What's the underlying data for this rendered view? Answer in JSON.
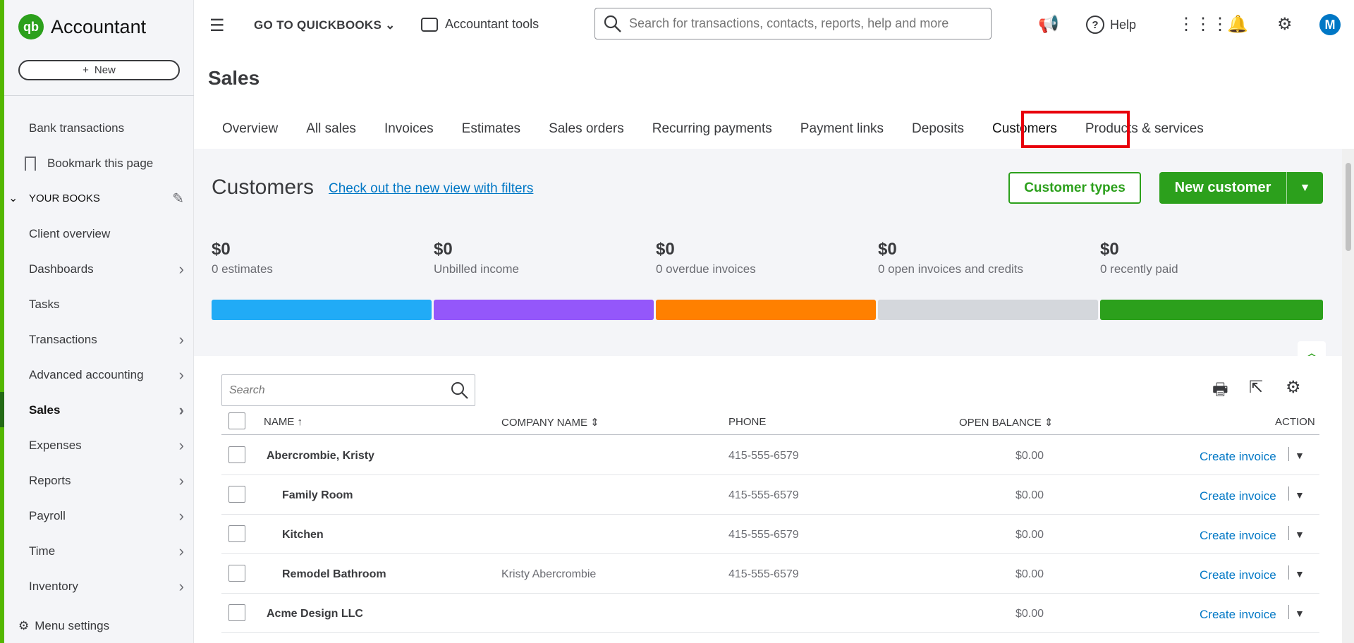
{
  "sidebar": {
    "logo_text": "Accountant",
    "new_label": "New",
    "items": [
      {
        "label": "Bank transactions"
      },
      {
        "label": "Bookmark this page"
      },
      {
        "label": "YOUR BOOKS"
      },
      {
        "label": "Client overview"
      },
      {
        "label": "Dashboards"
      },
      {
        "label": "Tasks"
      },
      {
        "label": "Transactions"
      },
      {
        "label": "Advanced accounting"
      },
      {
        "label": "Sales"
      },
      {
        "label": "Expenses"
      },
      {
        "label": "Reports"
      },
      {
        "label": "Payroll"
      },
      {
        "label": "Time"
      },
      {
        "label": "Inventory"
      }
    ],
    "menu_settings": "Menu settings"
  },
  "topbar": {
    "goto": "GO TO QUICKBOOKS",
    "accountant_tools": "Accountant tools",
    "search_placeholder": "Search for transactions, contacts, reports, help and more",
    "help": "Help",
    "avatar": "M"
  },
  "page": {
    "title": "Sales",
    "tabs": [
      "Overview",
      "All sales",
      "Invoices",
      "Estimates",
      "Sales orders",
      "Recurring payments",
      "Payment links",
      "Deposits",
      "Customers",
      "Products & services"
    ]
  },
  "customers": {
    "title": "Customers",
    "link": "Check out the new view with filters",
    "types_button": "Customer types",
    "new_button": "New customer",
    "money": [
      {
        "amount": "$0",
        "label": "0 estimates",
        "color": "#21abf6"
      },
      {
        "amount": "$0",
        "label": "Unbilled income",
        "color": "#9457fa"
      },
      {
        "amount": "$0",
        "label": "0 overdue invoices",
        "color": "#ff8000"
      },
      {
        "amount": "$0",
        "label": "0 open invoices and credits",
        "color": "#d4d7dc"
      },
      {
        "amount": "$0",
        "label": "0 recently paid",
        "color": "#2ca01c"
      }
    ],
    "search_placeholder": "Search",
    "columns": {
      "name": "NAME",
      "company": "COMPANY NAME",
      "phone": "PHONE",
      "balance": "OPEN BALANCE",
      "action": "ACTION"
    },
    "rows": [
      {
        "name": "Abercrombie, Kristy",
        "company": "",
        "phone": "415-555-6579",
        "balance": "$0.00",
        "action": "Create invoice"
      },
      {
        "name": "Family Room",
        "company": "",
        "phone": "415-555-6579",
        "balance": "$0.00",
        "action": "Create invoice"
      },
      {
        "name": "Kitchen",
        "company": "",
        "phone": "415-555-6579",
        "balance": "$0.00",
        "action": "Create invoice"
      },
      {
        "name": "Remodel Bathroom",
        "company": "Kristy Abercrombie",
        "phone": "415-555-6579",
        "balance": "$0.00",
        "action": "Create invoice"
      },
      {
        "name": "Acme Design LLC",
        "company": "",
        "phone": "",
        "balance": "$0.00",
        "action": "Create invoice"
      }
    ]
  }
}
